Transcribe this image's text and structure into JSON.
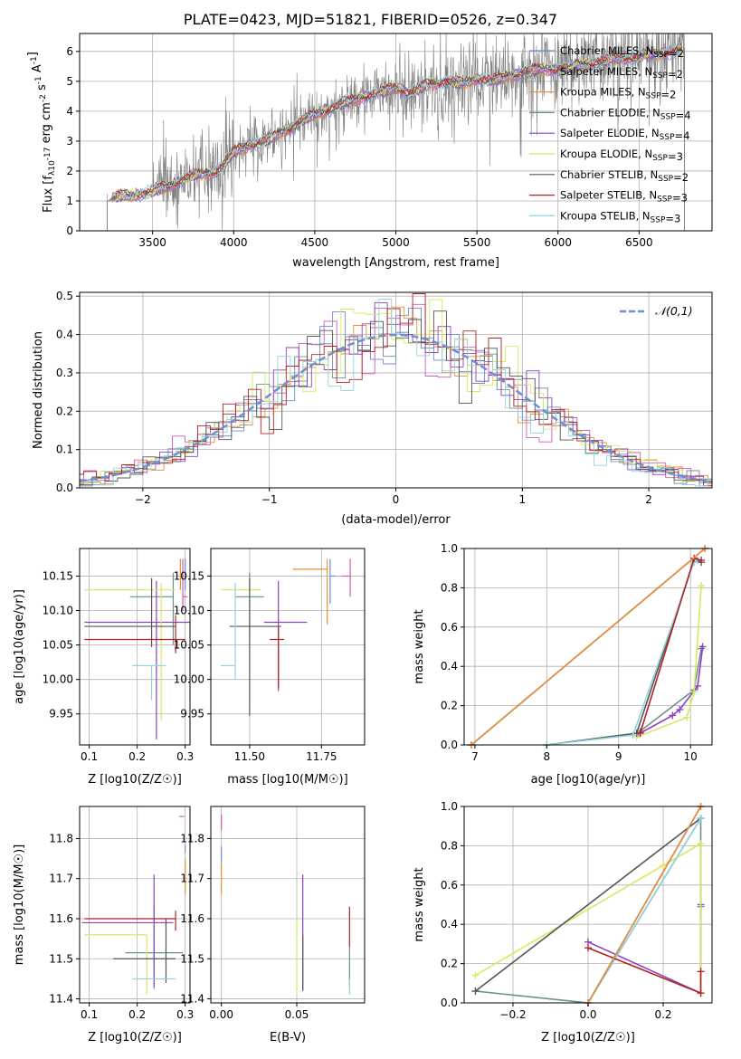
{
  "title": "PLATE=0423, MJD=51821, FIBERID=0526, z=0.347",
  "colors": {
    "series": [
      "#6f8fd3",
      "#d05bb8",
      "#e39433",
      "#6b8e8e",
      "#9040c0",
      "#d8e860",
      "#555555",
      "#b22222",
      "#8fd3de"
    ],
    "spectrum": "#808080",
    "grid": "#b0b0b0",
    "normal_curve": "#6f8fd3"
  },
  "chart_data": [
    {
      "id": "spectrum",
      "type": "line",
      "xlabel": "wavelength [Angstrom, rest frame]",
      "ylabel": "Flux [f_λ10^-17 erg cm^-2 s^-1 A^-1]",
      "xlim": [
        3050,
        6950
      ],
      "ylim": [
        0,
        6.6
      ],
      "xticks": [
        3500,
        4000,
        4500,
        5000,
        5500,
        6000,
        6500
      ],
      "yticks": [
        0,
        1,
        2,
        3,
        4,
        5,
        6
      ],
      "grid": true,
      "legend_position": "upper-right",
      "series": [
        {
          "name": "Chabrier MILES, N_SSP=2"
        },
        {
          "name": "Salpeter MILES, N_SSP=2"
        },
        {
          "name": "Kroupa MILES, N_SSP=2"
        },
        {
          "name": "Chabrier ELODIE, N_SSP=4"
        },
        {
          "name": "Salpeter ELODIE, N_SSP=4"
        },
        {
          "name": "Kroupa ELODIE, N_SSP=3"
        },
        {
          "name": "Chabrier STELIB, N_SSP=2"
        },
        {
          "name": "Salpeter STELIB, N_SSP=3"
        },
        {
          "name": "Kroupa STELIB, N_SSP=3"
        }
      ],
      "data_wavelength": [
        3220,
        3300,
        3400,
        3500,
        3600,
        3700,
        3800,
        3900,
        4000,
        4100,
        4200,
        4300,
        4400,
        4500,
        4600,
        4700,
        4800,
        4900,
        5000,
        5100,
        5200,
        5300,
        5400,
        5500,
        5600,
        5700,
        5800,
        5900,
        6000,
        6100,
        6200,
        6300,
        6400,
        6500,
        6600,
        6700,
        6780
      ],
      "model_flux": [
        1.0,
        1.15,
        1.2,
        1.3,
        1.5,
        1.75,
        1.9,
        2.0,
        2.6,
        2.9,
        3.0,
        3.3,
        3.6,
        3.9,
        4.1,
        4.3,
        4.5,
        4.6,
        4.8,
        4.6,
        4.9,
        5.0,
        4.9,
        5.1,
        5.0,
        5.2,
        5.3,
        5.4,
        5.4,
        5.5,
        5.6,
        5.7,
        5.8,
        5.8,
        5.9,
        6.0,
        6.1
      ]
    },
    {
      "id": "residual-hist",
      "type": "line",
      "xlabel": "(data-model)/error",
      "ylabel": "Normed distribution",
      "xlim": [
        -2.5,
        2.5
      ],
      "ylim": [
        0,
        0.51
      ],
      "xticks": [
        -2,
        -1,
        0,
        1,
        2
      ],
      "yticks": [
        0.0,
        0.1,
        0.2,
        0.3,
        0.4,
        0.5
      ],
      "grid": true,
      "legend_position": "upper-right",
      "legend_label": "𝒩(0,1)",
      "normal": {
        "mean": 0,
        "sigma": 1
      }
    },
    {
      "id": "age-vs-z",
      "type": "scatter",
      "xlabel": "Z [log10(Z/Z☉)]",
      "ylabel": "age [log10(age/yr)]",
      "xlim": [
        0.08,
        0.31
      ],
      "ylim": [
        9.905,
        10.19
      ],
      "xticks": [
        0.1,
        0.2,
        0.3
      ],
      "yticks": [
        9.95,
        10.0,
        10.05,
        10.1,
        10.15
      ],
      "grid": true,
      "points": [
        {
          "x": 0.3,
          "xerr": [
            0.0,
            0.0
          ],
          "y": 10.15,
          "yerr": [
            0.02,
            0.025
          ]
        },
        {
          "x": 0.295,
          "xerr": [
            0.0,
            0.01
          ],
          "y": 10.12,
          "yerr": [
            0.02,
            0.055
          ]
        },
        {
          "x": 0.29,
          "xerr": [
            0.0,
            0.015
          ],
          "y": 10.15,
          "yerr": [
            0.02,
            0.025
          ]
        },
        {
          "x": 0.275,
          "xerr": [
            0.09,
            0.0
          ],
          "y": 10.12,
          "yerr": [
            0.07,
            0.035
          ]
        },
        {
          "x": 0.24,
          "xerr": [
            0.15,
            0.07
          ],
          "y": 10.083,
          "yerr": [
            0.17,
            0.06
          ]
        },
        {
          "x": 0.25,
          "xerr": [
            0.16,
            0.03
          ],
          "y": 10.13,
          "yerr": [
            0.19,
            0.01
          ]
        },
        {
          "x": 0.23,
          "xerr": [
            0.14,
            0.05
          ],
          "y": 10.077,
          "yerr": [
            0.03,
            0.07
          ]
        },
        {
          "x": 0.28,
          "xerr": [
            0.19,
            0.02
          ],
          "y": 10.058,
          "yerr": [
            0.02,
            0.035
          ]
        },
        {
          "x": 0.23,
          "xerr": [
            0.04,
            0.03
          ],
          "y": 10.02,
          "yerr": [
            0.05,
            0.0
          ]
        }
      ]
    },
    {
      "id": "age-vs-mass",
      "type": "scatter",
      "xlabel": "mass [log10(M/M☉)]",
      "ylabel": "",
      "xlim": [
        11.365,
        11.9
      ],
      "ylim": [
        9.905,
        10.19
      ],
      "xticks": [
        11.5,
        11.75
      ],
      "yticks": [
        9.95,
        10.0,
        10.05,
        10.1,
        10.15
      ],
      "grid": true,
      "points": [
        {
          "x": 11.78,
          "xerr": [
            0.0,
            0.02
          ],
          "y": 10.15,
          "yerr": [
            0.04,
            0.025
          ]
        },
        {
          "x": 11.85,
          "xerr": [
            0.03,
            0.0
          ],
          "y": 10.15,
          "yerr": [
            0.03,
            0.025
          ]
        },
        {
          "x": 11.77,
          "xerr": [
            0.12,
            0.0
          ],
          "y": 10.16,
          "yerr": [
            0.08,
            0.015
          ]
        },
        {
          "x": 11.5,
          "xerr": [
            0.05,
            0.05
          ],
          "y": 10.12,
          "yerr": [
            0.06,
            0.035
          ]
        },
        {
          "x": 11.6,
          "xerr": [
            0.05,
            0.1
          ],
          "y": 10.083,
          "yerr": [
            0.1,
            0.06
          ]
        },
        {
          "x": 11.5,
          "xerr": [
            0.1,
            0.04
          ],
          "y": 10.13,
          "yerr": [
            0.16,
            0.01
          ]
        },
        {
          "x": 11.5,
          "xerr": [
            0.07,
            0.11
          ],
          "y": 10.077,
          "yerr": [
            0.13,
            0.07
          ]
        },
        {
          "x": 11.6,
          "xerr": [
            0.03,
            0.02
          ],
          "y": 10.058,
          "yerr": [
            0.07,
            0.02
          ]
        },
        {
          "x": 11.45,
          "xerr": [
            0.05,
            0.0
          ],
          "y": 10.02,
          "yerr": [
            0.02,
            0.12
          ]
        }
      ]
    },
    {
      "id": "mass-weight-vs-age",
      "type": "line",
      "xlabel": "age [log10(age/yr)]",
      "ylabel": "mass weight",
      "xlim": [
        6.85,
        10.3
      ],
      "ylim": [
        0,
        1.0
      ],
      "xticks": [
        7,
        8,
        9,
        10
      ],
      "yticks": [
        0.0,
        0.2,
        0.4,
        0.6,
        0.8,
        1.0
      ],
      "grid": true,
      "series": [
        {
          "x": [
            6.95,
            10.2
          ],
          "y": [
            0.0,
            1.0
          ]
        },
        {
          "x": [
            6.95,
            10.2
          ],
          "y": [
            0.0,
            1.0
          ]
        },
        {
          "x": [
            6.95,
            10.2
          ],
          "y": [
            0.0,
            1.0
          ]
        },
        {
          "x": [
            9.25,
            9.3,
            10.05,
            10.15
          ],
          "y": [
            0.05,
            0.07,
            0.28,
            0.49
          ]
        },
        {
          "x": [
            9.3,
            9.75,
            9.85,
            10.1,
            10.17
          ],
          "y": [
            0.06,
            0.15,
            0.18,
            0.3,
            0.5
          ]
        },
        {
          "x": [
            9.25,
            9.95,
            10.05,
            10.15
          ],
          "y": [
            0.04,
            0.14,
            0.27,
            0.81
          ]
        },
        {
          "x": [
            8.0,
            9.25,
            10.05,
            10.15
          ],
          "y": [
            0.0,
            0.06,
            0.94,
            0.93
          ]
        },
        {
          "x": [
            9.3,
            10.05,
            10.15
          ],
          "y": [
            0.06,
            0.95,
            0.94
          ]
        },
        {
          "x": [
            8.0,
            9.2,
            10.05,
            10.1
          ],
          "y": [
            0.0,
            0.05,
            0.93,
            0.94
          ]
        }
      ]
    },
    {
      "id": "mass-vs-z",
      "type": "scatter",
      "xlabel": "Z [log10(Z/Z☉)]",
      "ylabel": "mass [log10(M/M☉)]",
      "xlim": [
        0.08,
        0.31
      ],
      "ylim": [
        11.39,
        11.88
      ],
      "xticks": [
        0.1,
        0.2,
        0.3
      ],
      "yticks": [
        11.4,
        11.5,
        11.6,
        11.7,
        11.8
      ],
      "grid": true,
      "points": [
        {
          "x": 0.3,
          "xerr": [
            0.0,
            0.0
          ],
          "y": 11.775,
          "yerr": [
            0.01,
            0.01
          ]
        },
        {
          "x": 0.298,
          "xerr": [
            0.01,
            0.0
          ],
          "y": 11.855,
          "yerr": [
            0.0,
            0.0
          ]
        },
        {
          "x": 0.3,
          "xerr": [
            0.0,
            0.0
          ],
          "y": 11.7,
          "yerr": [
            0.04,
            0.05
          ]
        },
        {
          "x": 0.235,
          "xerr": [
            0.06,
            0.06
          ],
          "y": 11.515,
          "yerr": [
            0.09,
            0.12
          ]
        },
        {
          "x": 0.235,
          "xerr": [
            0.15,
            0.04
          ],
          "y": 11.59,
          "yerr": [
            0.16,
            0.12
          ]
        },
        {
          "x": 0.22,
          "xerr": [
            0.13,
            0.0
          ],
          "y": 11.56,
          "yerr": [
            0.15,
            0.0
          ]
        },
        {
          "x": 0.26,
          "xerr": [
            0.11,
            0.02
          ],
          "y": 11.5,
          "yerr": [
            0.06,
            0.1
          ]
        },
        {
          "x": 0.28,
          "xerr": [
            0.19,
            0.0
          ],
          "y": 11.6,
          "yerr": [
            0.03,
            0.02
          ]
        },
        {
          "x": 0.23,
          "xerr": [
            0.04,
            0.05
          ],
          "y": 11.45,
          "yerr": [
            0.0,
            0.0
          ]
        }
      ]
    },
    {
      "id": "mass-vs-ebv",
      "type": "scatter",
      "xlabel": "E(B-V)",
      "ylabel": "",
      "xlim": [
        -0.007,
        0.095
      ],
      "ylim": [
        11.39,
        11.88
      ],
      "xticks": [
        0.0,
        0.05
      ],
      "yticks": [
        11.4,
        11.5,
        11.6,
        11.7,
        11.8
      ],
      "grid": true,
      "points": [
        {
          "x": 0.0,
          "xerr": [
            0,
            0
          ],
          "y": 11.76,
          "yerr": [
            0.02,
            0.02
          ]
        },
        {
          "x": 0.0,
          "xerr": [
            0,
            0
          ],
          "y": 11.84,
          "yerr": [
            0.02,
            0.02
          ]
        },
        {
          "x": 0.0,
          "xerr": [
            0,
            0
          ],
          "y": 11.7,
          "yerr": [
            0.04,
            0.04
          ]
        },
        {
          "x": 0.085,
          "xerr": [
            0,
            0
          ],
          "y": 11.48,
          "yerr": [
            0.05,
            0.05
          ]
        },
        {
          "x": 0.054,
          "xerr": [
            0,
            0
          ],
          "y": 11.59,
          "yerr": [
            0.17,
            0.12
          ]
        },
        {
          "x": 0.05,
          "xerr": [
            0,
            0
          ],
          "y": 11.51,
          "yerr": [
            0.1,
            0.09
          ]
        },
        {
          "x": 0.054,
          "xerr": [
            0,
            0
          ],
          "y": 11.5,
          "yerr": [
            0.08,
            0.06
          ]
        },
        {
          "x": 0.085,
          "xerr": [
            0,
            0
          ],
          "y": 11.58,
          "yerr": [
            0.05,
            0.05
          ]
        },
        {
          "x": 0.085,
          "xerr": [
            0,
            0
          ],
          "y": 11.43,
          "yerr": [
            0.02,
            0.02
          ]
        }
      ]
    },
    {
      "id": "mass-weight-vs-z",
      "type": "line",
      "xlabel": "Z [log10(Z/Z☉)]",
      "ylabel": "mass weight",
      "xlim": [
        -0.33,
        0.33
      ],
      "ylim": [
        0,
        1.0
      ],
      "xticks": [
        -0.2,
        0.0,
        0.2
      ],
      "yticks": [
        0.0,
        0.2,
        0.4,
        0.6,
        0.8,
        1.0
      ],
      "grid": true,
      "series": [
        {
          "x": [
            0.0,
            0.3
          ],
          "y": [
            0.0,
            1.0
          ]
        },
        {
          "x": [
            0.0,
            0.3
          ],
          "y": [
            0.0,
            1.0
          ]
        },
        {
          "x": [
            0.0,
            0.3
          ],
          "y": [
            0.0,
            1.0
          ]
        },
        {
          "x": [
            -0.3,
            0.0,
            0.3,
            0.3
          ],
          "y": [
            0.06,
            0.0,
            0.94,
            0.49
          ]
        },
        {
          "x": [
            0.0,
            0.3,
            0.3
          ],
          "y": [
            0.31,
            0.05,
            0.5
          ]
        },
        {
          "x": [
            -0.3,
            0.2,
            0.3,
            0.3
          ],
          "y": [
            0.14,
            0.7,
            0.81,
            0.05
          ]
        },
        {
          "x": [
            -0.3,
            0.3
          ],
          "y": [
            0.06,
            0.94
          ]
        },
        {
          "x": [
            0.0,
            0.3,
            0.3
          ],
          "y": [
            0.28,
            0.05,
            0.16
          ]
        },
        {
          "x": [
            0.0,
            0.3
          ],
          "y": [
            0.0,
            0.94
          ]
        }
      ]
    }
  ]
}
